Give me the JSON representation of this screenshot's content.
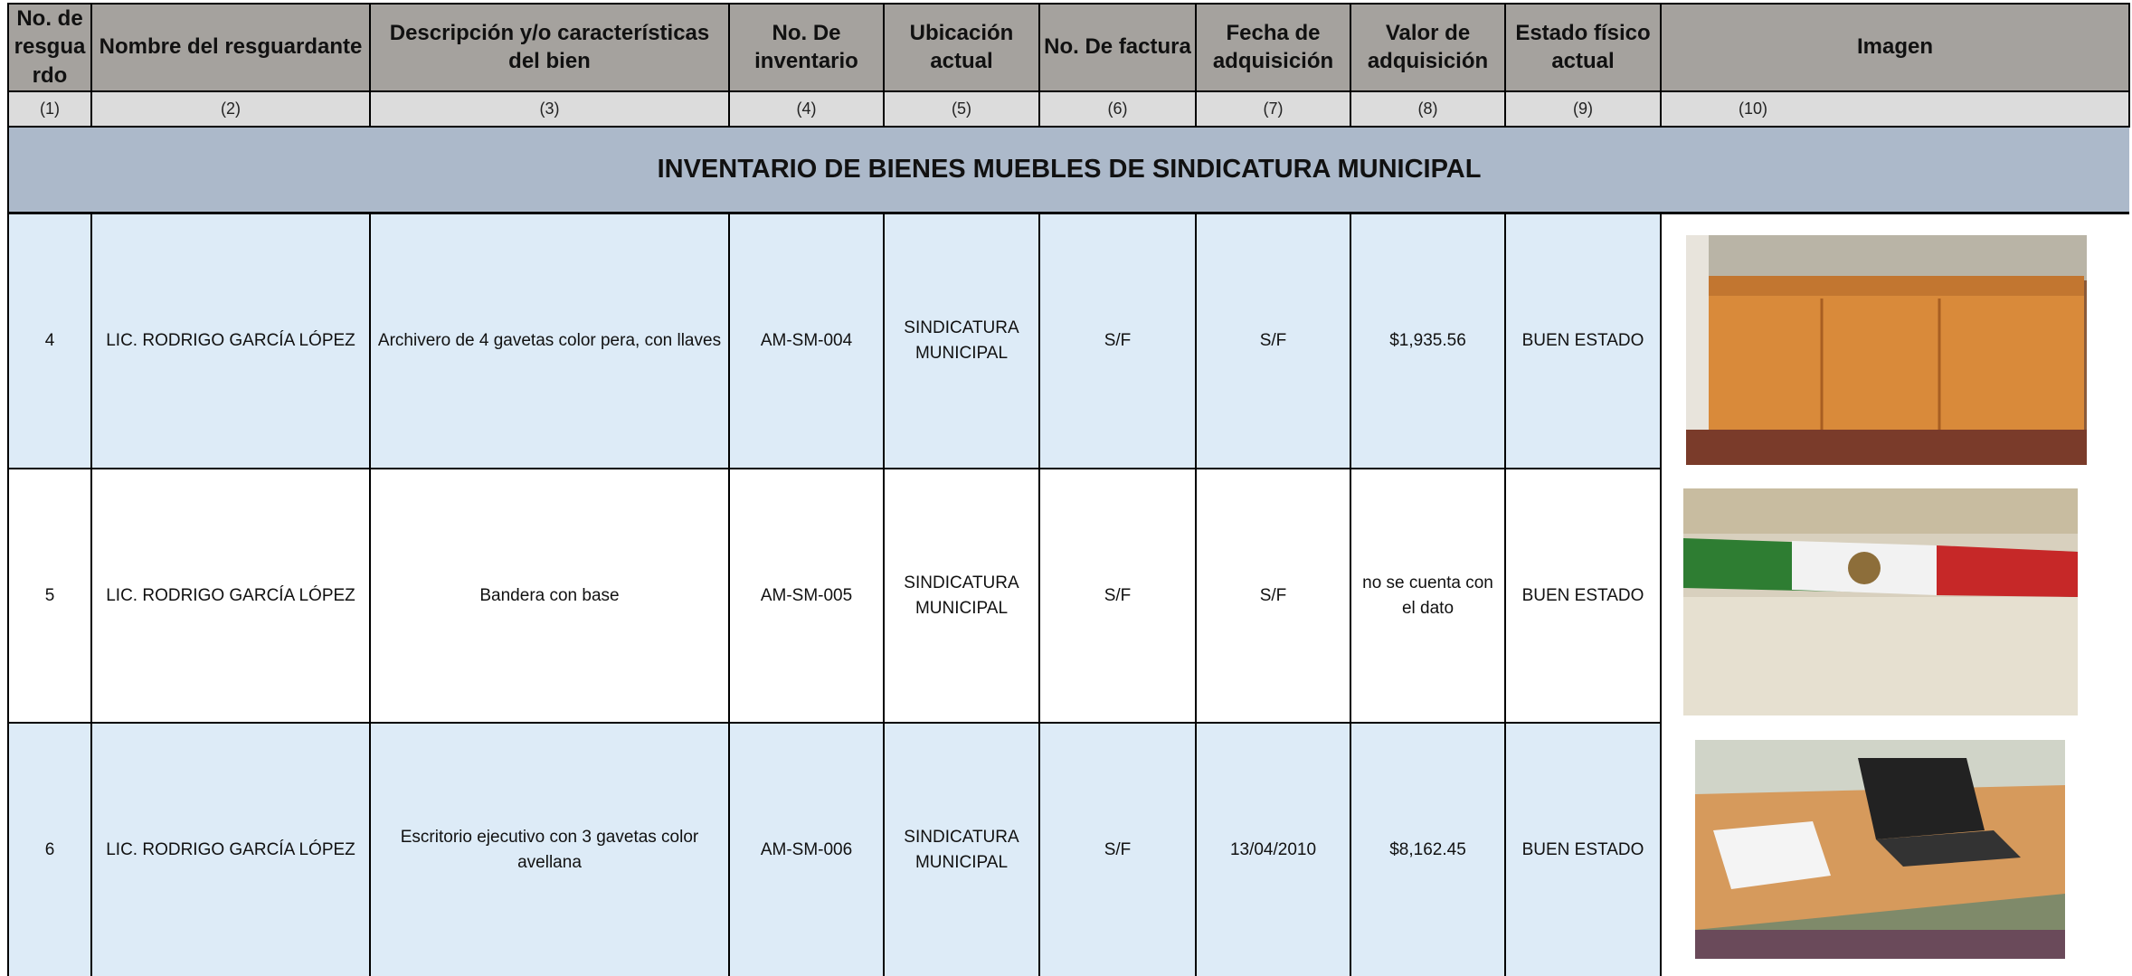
{
  "header": {
    "columns": [
      "No. de resguardo",
      "Nombre del resguardante",
      "Descripción y/o características del bien",
      "No. De inventario",
      "Ubicación actual",
      "No. De factura",
      "Fecha de adquisición",
      "Valor de adquisición",
      "Estado físico actual",
      "Imagen"
    ],
    "numbers": [
      "(1)",
      "(2)",
      "(3)",
      "(4)",
      "(5)",
      "(6)",
      "(7)",
      "(8)",
      "(9)",
      "(10)"
    ]
  },
  "banner": "INVENTARIO DE BIENES MUEBLES DE SINDICATURA MUNICIPAL",
  "rows": [
    [
      "4",
      "LIC. RODRIGO GARCÍA LÓPEZ",
      "Archivero de 4 gavetas color pera, con llaves",
      "AM-SM-004",
      "SINDICATURA MUNICIPAL",
      "S/F",
      "S/F",
      "$1,935.56",
      "BUEN ESTADO"
    ],
    [
      "5",
      "LIC. RODRIGO GARCÍA LÓPEZ",
      "Bandera con base",
      "AM-SM-005",
      "SINDICATURA MUNICIPAL",
      "S/F",
      "S/F",
      "no se cuenta con el dato",
      "BUEN ESTADO"
    ],
    [
      "6",
      "LIC. RODRIGO GARCÍA LÓPEZ",
      "Escritorio ejecutivo con 3  gavetas color avellana",
      "AM-SM-006",
      "SINDICATURA MUNICIPAL",
      "S/F",
      "13/04/2010",
      "$8,162.45",
      "BUEN ESTADO"
    ]
  ]
}
